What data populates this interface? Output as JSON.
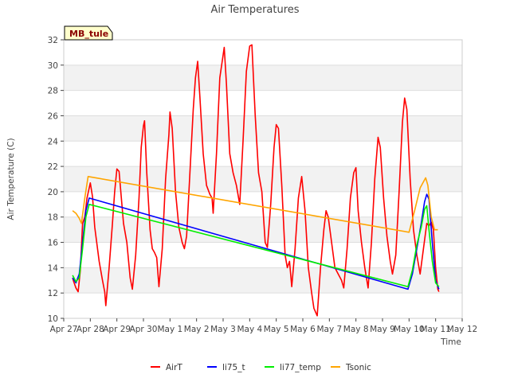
{
  "chart_data": {
    "type": "line",
    "title": "Air Temperatures",
    "xlabel": "Time",
    "ylabel": "Air Temperature (C)",
    "site_label": "MB_tule",
    "ylim": [
      10,
      32
    ],
    "yticks": [
      10,
      12,
      14,
      16,
      18,
      20,
      22,
      24,
      26,
      28,
      30,
      32
    ],
    "xlim": [
      "Apr 27",
      "May 12"
    ],
    "xticks": [
      "Apr 27",
      "Apr 28",
      "Apr 29",
      "Apr 30",
      "May 1",
      "May 2",
      "May 3",
      "May 4",
      "May 5",
      "May 6",
      "May 7",
      "May 8",
      "May 9",
      "May 10",
      "May 11",
      "May 12"
    ],
    "grid": "horizontal bands",
    "legend_position": "bottom",
    "colors": {
      "AirT": "#ff0000",
      "li75_t": "#0000ff",
      "li77_temp": "#00ee00",
      "Tsonic": "#ffa500",
      "site_label_bg": "#ffffcc",
      "site_label_text": "#8b0000",
      "band": "#f2f2f2"
    },
    "series": [
      {
        "name": "AirT",
        "points": [
          [
            "Apr 27 08:00",
            13.2
          ],
          [
            "Apr 27 09:00",
            12.9
          ],
          [
            "Apr 27 11:00",
            12.4
          ],
          [
            "Apr 27 13:00",
            12.1
          ],
          [
            "Apr 27 15:00",
            13.8
          ],
          [
            "Apr 27 17:00",
            17.5
          ],
          [
            "Apr 27 19:00",
            18.0
          ],
          [
            "Apr 27 21:00",
            19.5
          ],
          [
            "Apr 28 00:00",
            20.7
          ],
          [
            "Apr 28 02:00",
            19.6
          ],
          [
            "Apr 28 04:00",
            17.2
          ],
          [
            "Apr 28 08:00",
            14.5
          ],
          [
            "Apr 28 11:00",
            13.0
          ],
          [
            "Apr 28 13:00",
            12.1
          ],
          [
            "Apr 28 14:00",
            11.0
          ],
          [
            "Apr 28 17:00",
            14.0
          ],
          [
            "Apr 28 20:00",
            17.5
          ],
          [
            "Apr 28 22:00",
            20.0
          ],
          [
            "Apr 29 00:00",
            21.8
          ],
          [
            "Apr 29 02:00",
            21.6
          ],
          [
            "Apr 29 06:00",
            17.5
          ],
          [
            "Apr 29 09:00",
            16.0
          ],
          [
            "Apr 29 12:00",
            13.2
          ],
          [
            "Apr 29 14:00",
            12.3
          ],
          [
            "Apr 29 17:00",
            15.0
          ],
          [
            "Apr 29 20:00",
            19.5
          ],
          [
            "Apr 29 22:00",
            23.5
          ],
          [
            "Apr 30 00:00",
            25.2
          ],
          [
            "Apr 30 01:00",
            25.6
          ],
          [
            "Apr 30 03:00",
            21.5
          ],
          [
            "Apr 30 06:00",
            17.0
          ],
          [
            "Apr 30 08:00",
            15.5
          ],
          [
            "Apr 30 10:00",
            15.2
          ],
          [
            "Apr 30 12:00",
            14.8
          ],
          [
            "Apr 30 14:00",
            12.5
          ],
          [
            "Apr 30 17:00",
            15.5
          ],
          [
            "Apr 30 20:00",
            21.0
          ],
          [
            "Apr 30 23:00",
            24.5
          ],
          [
            "May 1 00:00",
            26.3
          ],
          [
            "May 1 02:00",
            25.0
          ],
          [
            "May 1 05:00",
            20.0
          ],
          [
            "May 1 08:00",
            17.2
          ],
          [
            "May 1 11:00",
            16.0
          ],
          [
            "May 1 13:00",
            15.5
          ],
          [
            "May 1 15:00",
            16.5
          ],
          [
            "May 1 18:00",
            21.5
          ],
          [
            "May 1 21:00",
            26.5
          ],
          [
            "May 1 23:00",
            29.0
          ],
          [
            "May 2 01:00",
            30.3
          ],
          [
            "May 2 03:00",
            27.5
          ],
          [
            "May 2 06:00",
            23.0
          ],
          [
            "May 2 09:00",
            20.5
          ],
          [
            "May 2 12:00",
            19.8
          ],
          [
            "May 2 14:00",
            19.5
          ],
          [
            "May 2 15:00",
            18.3
          ],
          [
            "May 2 18:00",
            23.0
          ],
          [
            "May 2 21:00",
            29.0
          ],
          [
            "May 3 00:00",
            30.8
          ],
          [
            "May 3 01:00",
            31.4
          ],
          [
            "May 3 03:00",
            28.5
          ],
          [
            "May 3 06:00",
            23.0
          ],
          [
            "May 3 09:00",
            21.5
          ],
          [
            "May 3 12:00",
            20.5
          ],
          [
            "May 3 15:00",
            19.0
          ],
          [
            "May 3 18:00",
            24.0
          ],
          [
            "May 3 21:00",
            29.5
          ],
          [
            "May 4 00:00",
            31.5
          ],
          [
            "May 4 02:00",
            31.6
          ],
          [
            "May 4 05:00",
            26.0
          ],
          [
            "May 4 08:00",
            21.5
          ],
          [
            "May 4 11:00",
            20.0
          ],
          [
            "May 4 14:00",
            16.0
          ],
          [
            "May 4 16:00",
            15.6
          ],
          [
            "May 4 19:00",
            19.0
          ],
          [
            "May 4 22:00",
            23.5
          ],
          [
            "May 5 00:00",
            25.3
          ],
          [
            "May 5 02:00",
            25.0
          ],
          [
            "May 5 05:00",
            20.5
          ],
          [
            "May 5 08:00",
            15.0
          ],
          [
            "May 5 10:00",
            14.0
          ],
          [
            "May 5 12:00",
            14.5
          ],
          [
            "May 5 14:00",
            12.5
          ],
          [
            "May 5 17:00",
            15.5
          ],
          [
            "May 5 20:00",
            19.5
          ],
          [
            "May 5 23:00",
            21.2
          ],
          [
            "May 6 02:00",
            18.5
          ],
          [
            "May 6 05:00",
            14.0
          ],
          [
            "May 6 08:00",
            12.0
          ],
          [
            "May 6 10:00",
            10.8
          ],
          [
            "May 6 13:00",
            10.2
          ],
          [
            "May 6 16:00",
            14.0
          ],
          [
            "May 6 19:00",
            17.0
          ],
          [
            "May 6 21:00",
            18.5
          ],
          [
            "May 6 23:00",
            18.0
          ],
          [
            "May 7 02:00",
            16.0
          ],
          [
            "May 7 05:00",
            14.0
          ],
          [
            "May 7 08:00",
            13.5
          ],
          [
            "May 7 11:00",
            13.0
          ],
          [
            "May 7 13:00",
            12.4
          ],
          [
            "May 7 16:00",
            15.5
          ],
          [
            "May 7 19:00",
            19.5
          ],
          [
            "May 7 22:00",
            21.5
          ],
          [
            "May 8 00:00",
            21.9
          ],
          [
            "May 8 02:00",
            18.5
          ],
          [
            "May 8 05:00",
            16.0
          ],
          [
            "May 8 08:00",
            14.0
          ],
          [
            "May 8 11:00",
            12.4
          ],
          [
            "May 8 14:00",
            16.0
          ],
          [
            "May 8 17:00",
            21.0
          ],
          [
            "May 8 20:00",
            24.3
          ],
          [
            "May 8 22:00",
            23.5
          ],
          [
            "May 9 01:00",
            19.5
          ],
          [
            "May 9 04:00",
            16.5
          ],
          [
            "May 9 07:00",
            14.5
          ],
          [
            "May 9 09:00",
            13.5
          ],
          [
            "May 9 12:00",
            15.0
          ],
          [
            "May 9 15:00",
            20.0
          ],
          [
            "May 9 18:00",
            25.5
          ],
          [
            "May 9 20:00",
            27.4
          ],
          [
            "May 9 22:00",
            26.5
          ],
          [
            "May 10 01:00",
            21.0
          ],
          [
            "May 10 04:00",
            17.0
          ],
          [
            "May 10 07:00",
            15.0
          ],
          [
            "May 10 10:00",
            13.5
          ],
          [
            "May 10 13:00",
            15.5
          ],
          [
            "May 10 16:00",
            17.5
          ],
          [
            "May 10 18:00",
            17.3
          ],
          [
            "May 10 20:00",
            17.6
          ],
          [
            "May 10 22:00",
            17.0
          ],
          [
            "May 11 00:00",
            14.0
          ],
          [
            "May 11 02:00",
            12.3
          ],
          [
            "May 11 03:00",
            12.1
          ]
        ]
      },
      {
        "name": "li75_t",
        "points": [
          [
            "Apr 27 08:00",
            13.2
          ],
          [
            "Apr 27 11:00",
            12.8
          ],
          [
            "Apr 27 14:00",
            13.5
          ],
          [
            "Apr 27 17:00",
            16.0
          ],
          [
            "Apr 27 20:00",
            18.5
          ],
          [
            "Apr 27 23:00",
            19.5
          ],
          [
            "May 9 23:00",
            12.3
          ],
          [
            "May 10 03:00",
            13.5
          ],
          [
            "May 10 07:00",
            15.5
          ],
          [
            "May 10 11:00",
            17.5
          ],
          [
            "May 10 14:00",
            19.2
          ],
          [
            "May 10 16:00",
            19.8
          ],
          [
            "May 10 18:00",
            19.4
          ],
          [
            "May 10 21:00",
            16.0
          ],
          [
            "May 11 00:00",
            13.0
          ],
          [
            "May 11 03:00",
            12.3
          ]
        ]
      },
      {
        "name": "li77_temp",
        "points": [
          [
            "Apr 27 08:00",
            13.4
          ],
          [
            "Apr 27 11:00",
            12.9
          ],
          [
            "Apr 27 14:00",
            13.2
          ],
          [
            "Apr 27 17:00",
            15.5
          ],
          [
            "Apr 27 20:00",
            18.0
          ],
          [
            "Apr 27 23:00",
            19.0
          ],
          [
            "May 9 23:00",
            12.5
          ],
          [
            "May 10 03:00",
            13.8
          ],
          [
            "May 10 07:00",
            15.8
          ],
          [
            "May 10 11:00",
            17.2
          ],
          [
            "May 10 14:00",
            18.6
          ],
          [
            "May 10 16:00",
            18.9
          ],
          [
            "May 10 18:00",
            17.0
          ],
          [
            "May 10 21:00",
            14.5
          ],
          [
            "May 11 00:00",
            12.8
          ],
          [
            "May 11 03:00",
            12.5
          ]
        ]
      },
      {
        "name": "Tsonic",
        "points": [
          [
            "Apr 27 08:00",
            18.5
          ],
          [
            "Apr 27 11:00",
            18.3
          ],
          [
            "Apr 27 14:00",
            17.9
          ],
          [
            "Apr 27 16:00",
            17.5
          ],
          [
            "Apr 27 19:00",
            19.5
          ],
          [
            "Apr 27 22:00",
            21.2
          ],
          [
            "May 10 00:00",
            16.8
          ],
          [
            "May 10 05:00",
            18.5
          ],
          [
            "May 10 10:00",
            20.3
          ],
          [
            "May 10 15:00",
            21.1
          ],
          [
            "May 10 17:00",
            20.5
          ],
          [
            "May 10 20:00",
            18.0
          ],
          [
            "May 10 23:00",
            17.0
          ],
          [
            "May 11 02:00",
            17.0
          ]
        ]
      }
    ]
  }
}
